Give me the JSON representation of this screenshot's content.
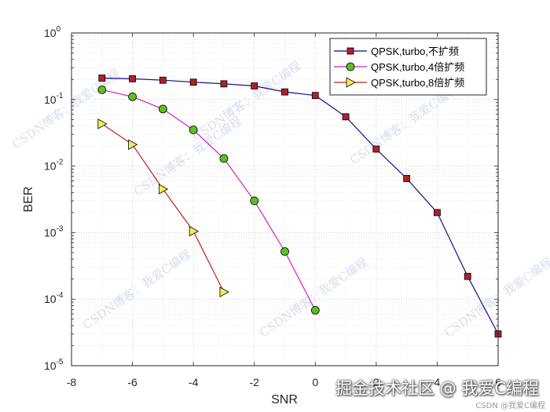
{
  "chart_data": {
    "type": "line",
    "title": "",
    "xlabel": "SNR",
    "ylabel": "BER",
    "xlim": [
      -8,
      6
    ],
    "ylim": [
      1e-05,
      1
    ],
    "yscale": "log",
    "x_ticks": [
      "-8",
      "-6",
      "-4",
      "-2",
      "0",
      "2",
      "4",
      "6"
    ],
    "y_ticks": [
      {
        "base": "10",
        "exp": "-5"
      },
      {
        "base": "10",
        "exp": "-4"
      },
      {
        "base": "10",
        "exp": "-3"
      },
      {
        "base": "10",
        "exp": "-2"
      },
      {
        "base": "10",
        "exp": "-1"
      },
      {
        "base": "10",
        "exp": "0"
      }
    ],
    "grid": true,
    "legend_position": "top-right",
    "series": [
      {
        "name": "QPSK,turbo,不扩频",
        "line_color": "#0b0b8a",
        "marker": "square",
        "marker_color": "#b0202a",
        "x": [
          -7,
          -6,
          -5,
          -4,
          -3,
          -2,
          -1,
          0,
          1,
          2,
          3,
          4,
          5,
          6
        ],
        "y": [
          0.21,
          0.205,
          0.195,
          0.182,
          0.172,
          0.16,
          0.13,
          0.115,
          0.055,
          0.018,
          0.0065,
          0.002,
          0.00022,
          3e-05
        ]
      },
      {
        "name": "QPSK,turbo,4倍扩频",
        "line_color": "#d020c8",
        "marker": "circle",
        "marker_color": "#5ac21c",
        "x": [
          -7,
          -6,
          -5,
          -4,
          -3,
          -2,
          -1,
          0
        ],
        "y": [
          0.14,
          0.11,
          0.072,
          0.035,
          0.013,
          0.003,
          0.00052,
          6.8e-05
        ]
      },
      {
        "name": "QPSK,turbo,8倍扩频",
        "line_color": "#c0201e",
        "marker": "triangle-right",
        "marker_color": "#f2ec5a",
        "x": [
          -7,
          -6,
          -5,
          -4,
          -3
        ],
        "y": [
          0.043,
          0.021,
          0.0045,
          0.00105,
          0.000128
        ]
      }
    ]
  },
  "watermark": {
    "texts": [
      "CSDN博客：我爱C编程",
      "CSDN博客：我爱C编程",
      "CSDN博客：我爱C编程",
      "CSDN博客：我爱C编程",
      "CSDN博客：我爱C编程",
      "CSDN博客：我爱C编程",
      "CSDN博客：我爱C编程"
    ],
    "color": "#b7c6df"
  },
  "credit": {
    "main": "掘金技术社区 @ 我爱C编程",
    "small": "CSDN @我爱C编程"
  }
}
